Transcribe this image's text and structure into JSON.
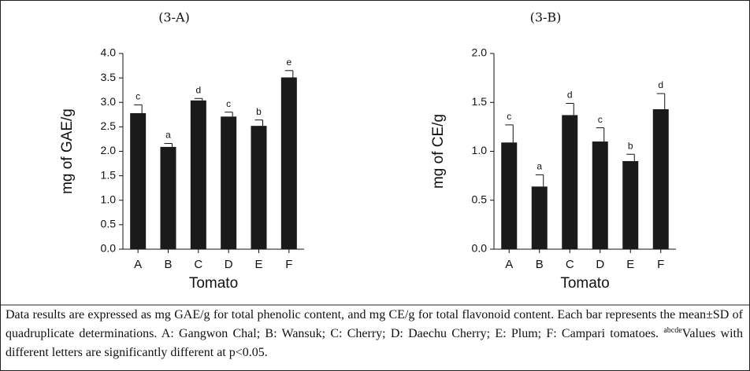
{
  "chart_data": [
    {
      "type": "bar",
      "title": "(3-A)",
      "ylabel": "mg of GAE/g",
      "xlabel": "Tomato",
      "categories": [
        "A",
        "B",
        "C",
        "D",
        "E",
        "F"
      ],
      "values": [
        2.78,
        2.09,
        3.04,
        2.71,
        2.52,
        3.51
      ],
      "errors": [
        0.17,
        0.07,
        0.04,
        0.09,
        0.12,
        0.14
      ],
      "annotations": [
        "c",
        "a",
        "d",
        "c",
        "b",
        "e"
      ],
      "color": "#1a1a1a",
      "ylim": [
        0,
        4
      ],
      "yticks": [
        {
          "value": 0,
          "label": "0.0"
        },
        0.5,
        {
          "value": 1,
          "label": "1.0"
        },
        1.5,
        {
          "value": 2,
          "label": "2.0"
        },
        2.5,
        {
          "value": 3,
          "label": "3.0"
        },
        3.5,
        {
          "value": 4,
          "label": "4.0"
        }
      ]
    },
    {
      "type": "bar",
      "title": "(3-B)",
      "ylabel": "mg of CE/g",
      "xlabel": "Tomato",
      "categories": [
        "A",
        "B",
        "C",
        "D",
        "E",
        "F"
      ],
      "values": [
        1.09,
        0.64,
        1.37,
        1.1,
        0.9,
        1.43
      ],
      "errors": [
        0.18,
        0.12,
        0.12,
        0.14,
        0.07,
        0.16
      ],
      "annotations": [
        "c",
        "a",
        "d",
        "c",
        "b",
        "d"
      ],
      "color": "#1a1a1a",
      "ylim": [
        0,
        2
      ],
      "yticks": [
        {
          "value": 0,
          "label": "0.0"
        },
        0.5,
        {
          "value": 1,
          "label": "1.0"
        },
        1.5,
        {
          "value": 2,
          "label": "2.0"
        }
      ]
    }
  ],
  "caption": {
    "text1": "Data results are expressed as mg GAE/g for total phenolic content, and mg CE/g for total flavonoid content. Each bar represents the mean±SD of quadruplicate determinations. A: Gangwon Chal; B: Wansuk; C: Cherry; D: Daechu Cherry; E: Plum; F: Campari tomatoes. ",
    "superscript": "abcde",
    "text2": "Values with different letters are significantly different at p<0.05."
  }
}
